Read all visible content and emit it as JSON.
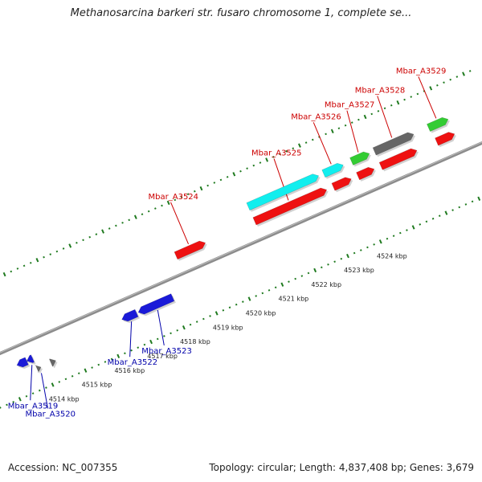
{
  "title": "Methanosarcina barkeri str. fusaro chromosome 1, complete se...",
  "footer": {
    "accession": "Accession: NC_007355",
    "summary": "Topology: circular; Length: 4,837,408 bp; Genes: 3,679"
  },
  "colors": {
    "backbone": "#8c8c8c",
    "tick": "#1f7a1f",
    "label_red": "#cc0000",
    "label_blue": "#0000aa",
    "red": "#ee1111",
    "blue": "#1a1ad8",
    "cyan": "#11eeee",
    "green": "#33cc33",
    "gray": "#666666"
  },
  "kbp_labels": [
    {
      "kbp": 4514,
      "text": "4514 kbp"
    },
    {
      "kbp": 4515,
      "text": "4515 kbp"
    },
    {
      "kbp": 4516,
      "text": "4516 kbp"
    },
    {
      "kbp": 4517,
      "text": "4517 kbp"
    },
    {
      "kbp": 4518,
      "text": "4518 kbp"
    },
    {
      "kbp": 4519,
      "text": "4519 kbp"
    },
    {
      "kbp": 4520,
      "text": "4520 kbp"
    },
    {
      "kbp": 4521,
      "text": "4521 kbp"
    },
    {
      "kbp": 4522,
      "text": "4522 kbp"
    },
    {
      "kbp": 4523,
      "text": "4523 kbp"
    },
    {
      "kbp": 4524,
      "text": "4524 kbp"
    }
  ],
  "genes": [
    {
      "label": "",
      "color": "blue",
      "start": 4513.3,
      "end": 4513.6,
      "lane": "inner",
      "strand": "-"
    },
    {
      "label": "",
      "color": "gray",
      "start": 4514.2,
      "end": 4514.35,
      "lane": "inner2",
      "strand": "+"
    },
    {
      "label": "Mbar_A3519",
      "color": "blue",
      "start": 4513.6,
      "end": 4513.78,
      "lane": "inner",
      "strand": "-",
      "label_pos": "below"
    },
    {
      "label": "Mbar_A3520",
      "color": "gray",
      "start": 4513.78,
      "end": 4513.9,
      "lane": "inner2",
      "strand": "+",
      "label_pos": "below"
    },
    {
      "label": "Mbar_A3522",
      "color": "blue",
      "start": 4516.5,
      "end": 4516.95,
      "lane": "inner",
      "strand": "-",
      "label_pos": "below"
    },
    {
      "label": "Mbar_A3523",
      "color": "blue",
      "start": 4517.0,
      "end": 4518.05,
      "lane": "inner",
      "strand": "-",
      "label_pos": "below"
    },
    {
      "label": "Mbar_A3524",
      "color": "red",
      "start": 4518.6,
      "end": 4519.5,
      "lane": "outer",
      "strand": "+"
    },
    {
      "label": "Mbar_A3525",
      "color": "red",
      "start": 4521.0,
      "end": 4523.2,
      "lane": "outer",
      "strand": "+"
    },
    {
      "label": "",
      "color": "cyan",
      "start": 4521.0,
      "end": 4523.15,
      "lane": "outer2",
      "strand": "+"
    },
    {
      "label": "Mbar_A3526",
      "color": "cyan",
      "start": 4523.3,
      "end": 4523.9,
      "lane": "outer2",
      "strand": "+"
    },
    {
      "label": "",
      "color": "red",
      "start": 4523.4,
      "end": 4523.95,
      "lane": "outer",
      "strand": "+"
    },
    {
      "label": "Mbar_A3527",
      "color": "green",
      "start": 4524.15,
      "end": 4524.7,
      "lane": "outer2",
      "strand": "+"
    },
    {
      "label": "",
      "color": "red",
      "start": 4524.15,
      "end": 4524.65,
      "lane": "outer",
      "strand": "+"
    },
    {
      "label": "Mbar_A3528",
      "color": "gray",
      "start": 4524.85,
      "end": 4526.05,
      "lane": "outer2",
      "strand": "+"
    },
    {
      "label": "",
      "color": "red",
      "start": 4524.85,
      "end": 4525.95,
      "lane": "outer",
      "strand": "+"
    },
    {
      "label": "Mbar_A3529",
      "color": "green",
      "start": 4526.5,
      "end": 4527.1,
      "lane": "outer2",
      "strand": "+"
    },
    {
      "label": "",
      "color": "red",
      "start": 4526.55,
      "end": 4527.1,
      "lane": "outer",
      "strand": "+"
    }
  ]
}
